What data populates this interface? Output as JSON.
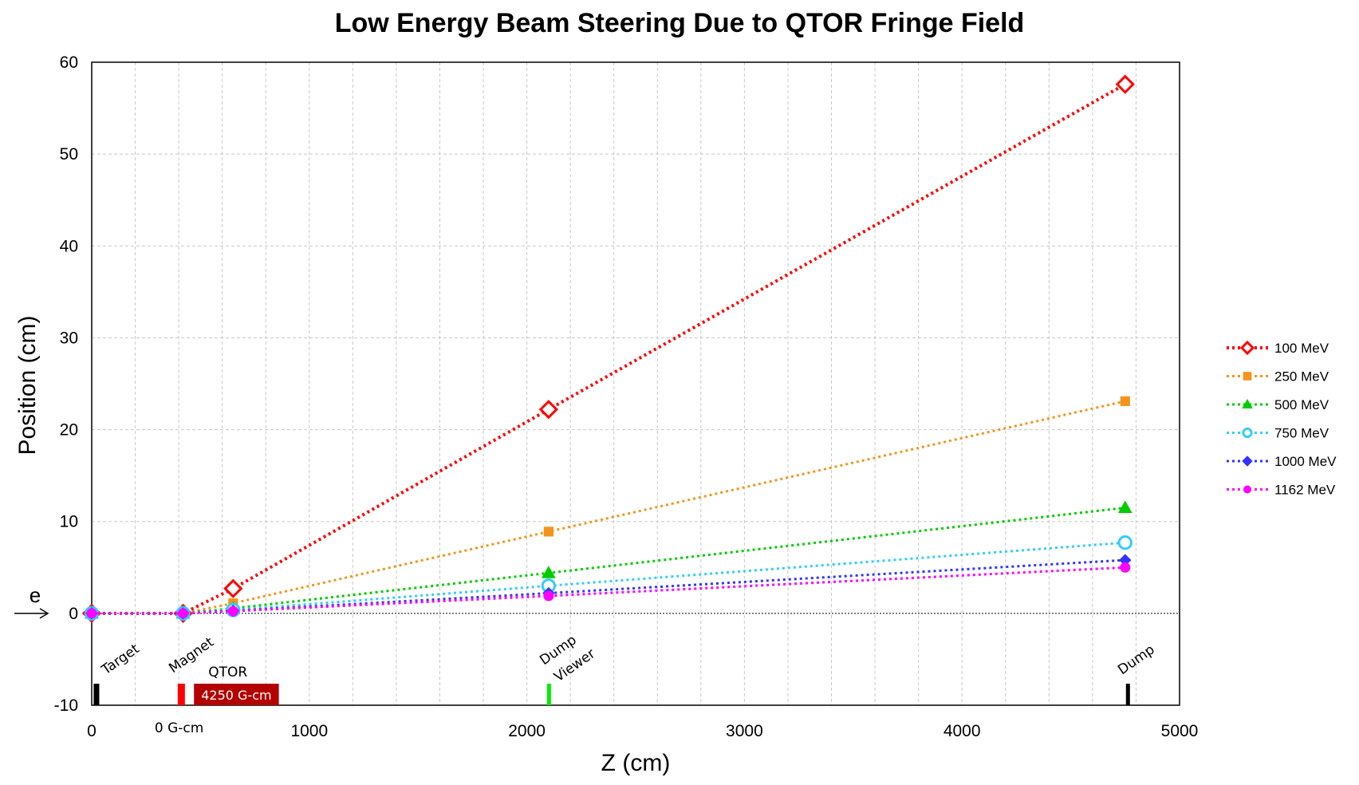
{
  "chart_data": {
    "type": "line",
    "title": "Low Energy Beam Steering Due to QTOR Fringe Field",
    "xlabel": "Z (cm)",
    "ylabel": "Position  (cm)",
    "xlim": [
      0,
      5000
    ],
    "ylim": [
      -10,
      60
    ],
    "xticks": [
      0,
      1000,
      2000,
      3000,
      4000,
      5000
    ],
    "yticks": [
      -10,
      0,
      10,
      20,
      30,
      40,
      50,
      60
    ],
    "grid": true,
    "legend_position": "right",
    "series": [
      {
        "name": "100 MeV",
        "color": "#ff0000",
        "marker": "diamond-open",
        "x": [
          0,
          420,
          650,
          2100,
          4750
        ],
        "y": [
          0,
          0,
          2.7,
          22.2,
          57.6
        ]
      },
      {
        "name": "250 MeV",
        "color": "#f5941d",
        "marker": "square",
        "x": [
          0,
          420,
          650,
          2100,
          4750
        ],
        "y": [
          0,
          0,
          1.1,
          8.9,
          23.1
        ]
      },
      {
        "name": "500 MeV",
        "color": "#00cc00",
        "marker": "triangle",
        "x": [
          0,
          420,
          650,
          2100,
          4750
        ],
        "y": [
          0,
          0,
          0.55,
          4.4,
          11.5
        ]
      },
      {
        "name": "750 MeV",
        "color": "#33ccff",
        "marker": "circle-open",
        "x": [
          0,
          420,
          650,
          2100,
          4750
        ],
        "y": [
          0,
          0,
          0.37,
          3.0,
          7.7
        ]
      },
      {
        "name": "1000 MeV",
        "color": "#3333ff",
        "marker": "diamond",
        "x": [
          0,
          420,
          650,
          2100,
          4750
        ],
        "y": [
          0,
          0,
          0.28,
          2.2,
          5.8
        ]
      },
      {
        "name": "1162 MeV",
        "color": "#ff00ff",
        "marker": "circle",
        "x": [
          0,
          420,
          650,
          2100,
          4750
        ],
        "y": [
          0,
          0,
          0.24,
          1.9,
          5.0
        ]
      }
    ],
    "annotations": {
      "beam_label": "e",
      "target": {
        "label": "Target",
        "z": 20,
        "color": "#000000"
      },
      "magnet": {
        "label": "Magnet",
        "z": 410,
        "sublabel": "0 G-cm",
        "color": "#ff0000"
      },
      "qtor": {
        "label": "QTOR",
        "z_start": 470,
        "z_end": 860,
        "box_label": "4250 G-cm",
        "color": "#b30000"
      },
      "dump_viewer": {
        "label_line1": "Dump",
        "label_line2": "Viewer",
        "z": 2100,
        "color": "#00ee00"
      },
      "dump": {
        "label": "Dump",
        "z": 4750,
        "color": "#000000"
      }
    }
  }
}
